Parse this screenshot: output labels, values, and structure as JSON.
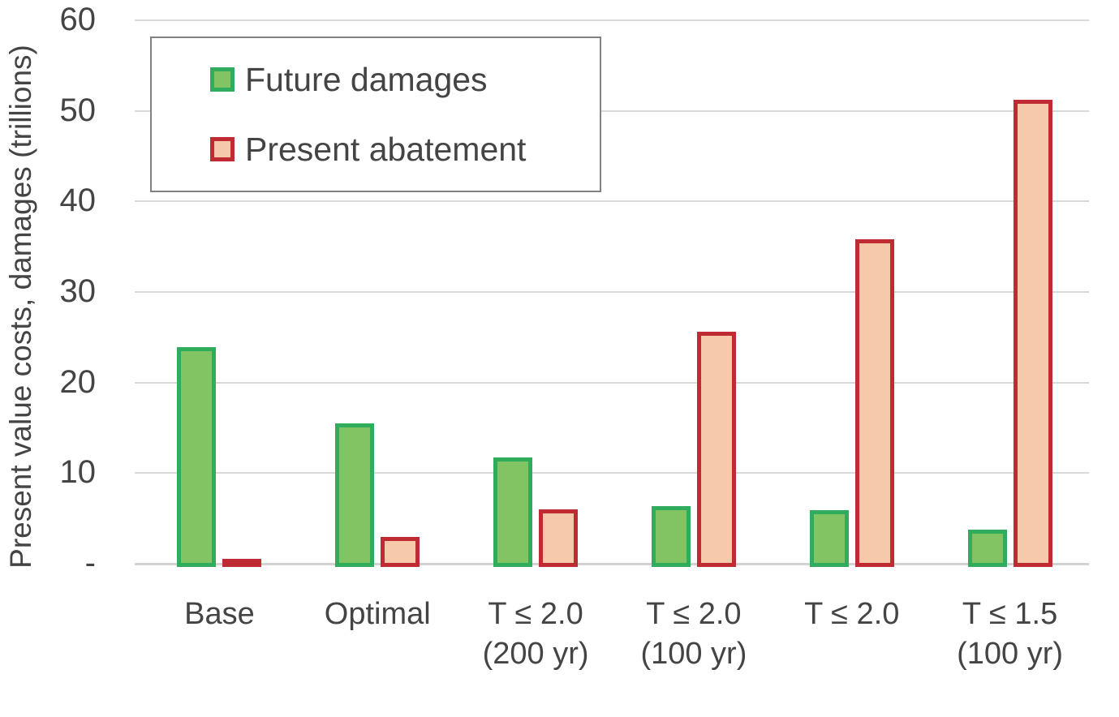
{
  "chart_data": {
    "type": "bar",
    "title": "",
    "xlabel": "",
    "ylabel": "Present value costs, damages (trillions)",
    "ylim": [
      0,
      60
    ],
    "grid": true,
    "legend_position": "top-left inside plot",
    "yticks": [
      {
        "value": 60,
        "label": "60"
      },
      {
        "value": 50,
        "label": "50"
      },
      {
        "value": 40,
        "label": "40"
      },
      {
        "value": 30,
        "label": "30"
      },
      {
        "value": 20,
        "label": "20"
      },
      {
        "value": 10,
        "label": "10"
      },
      {
        "value": 0,
        "label": "-"
      }
    ],
    "categories": [
      "Base",
      "Optimal",
      "T ≤ 2.0\n(200 yr)",
      "T ≤ 2.0\n(100 yr)",
      "T ≤ 2.0",
      "T ≤ 1.5\n(100 yr)"
    ],
    "series": [
      {
        "name": "Future damages",
        "values": [
          23.9,
          15.5,
          11.7,
          6.4,
          5.9,
          3.8
        ],
        "fill_color": "#82C464",
        "border_color": "#2FAD5C"
      },
      {
        "name": "Present abatement",
        "values": [
          0.2,
          3.0,
          6.0,
          25.6,
          35.8,
          51.2
        ],
        "fill_color": "#F6C9AB",
        "border_color": "#BE2B33"
      }
    ]
  },
  "colors": {
    "gridline": "#D9D9D9",
    "axis_line": "#D2D2D2",
    "text": "#444444",
    "legend_border": "#818181"
  }
}
